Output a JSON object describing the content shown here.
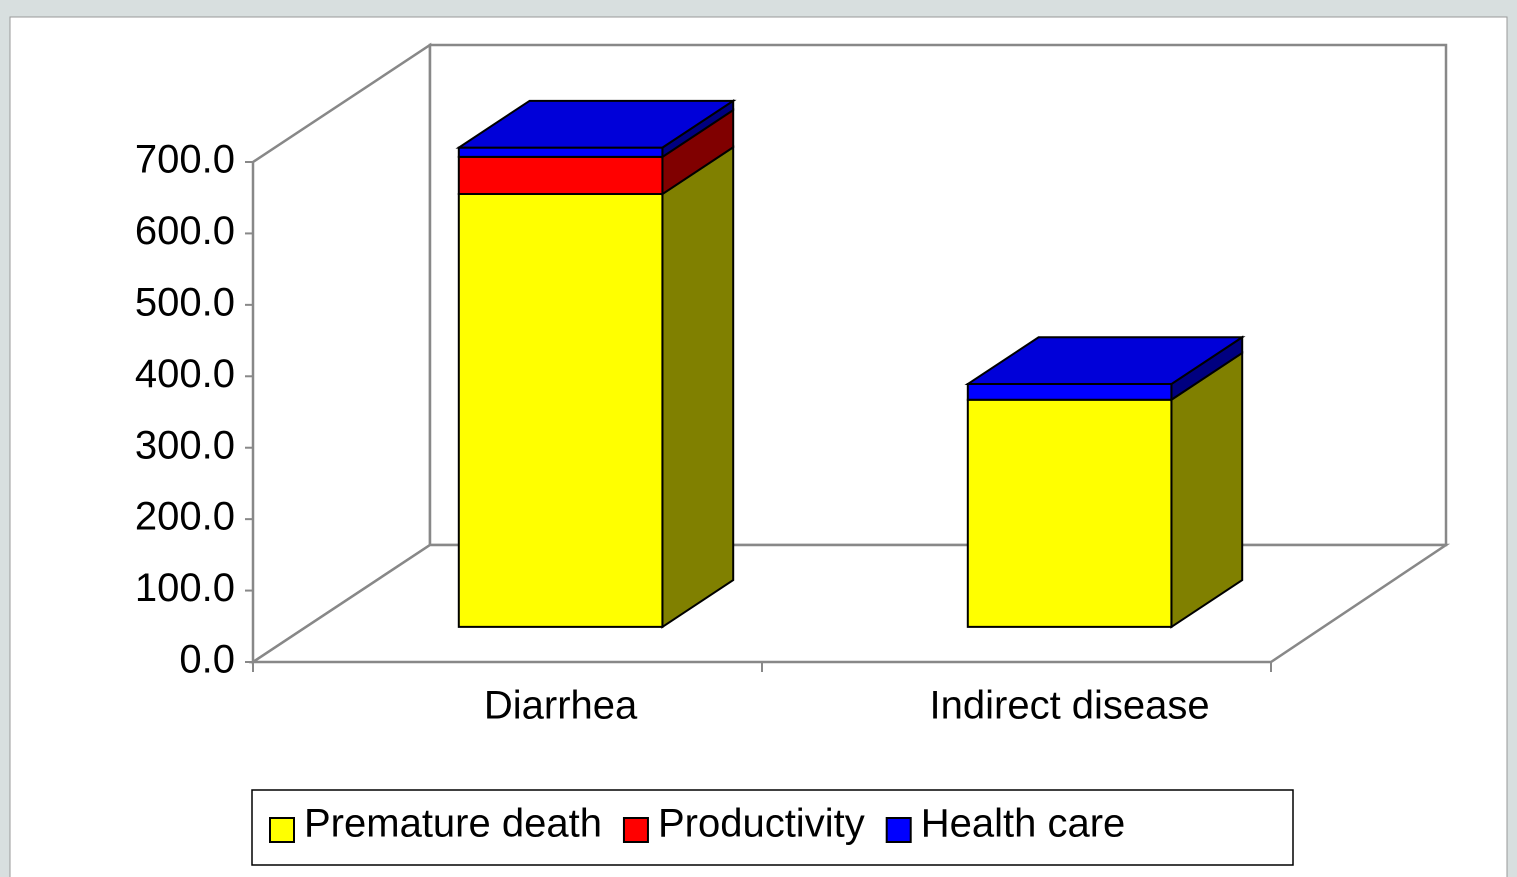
{
  "chart_data": {
    "type": "bar3d_stacked",
    "categories": [
      "Diarrhea",
      "Indirect disease"
    ],
    "series": [
      {
        "name": "Premature death",
        "color": "#ffff00",
        "values": [
          606,
          318
        ]
      },
      {
        "name": "Productivity",
        "color": "#ff0000",
        "values": [
          52,
          0
        ]
      },
      {
        "name": "Health care",
        "color": "#0000ff",
        "values": [
          13,
          22
        ]
      }
    ],
    "ylim": [
      0,
      700
    ],
    "yticks": [
      {
        "value": 0,
        "label": "0.0"
      },
      {
        "value": 100,
        "label": "100.0"
      },
      {
        "value": 200,
        "label": "200.0"
      },
      {
        "value": 300,
        "label": "300.0"
      },
      {
        "value": 400,
        "label": "400.0"
      },
      {
        "value": 500,
        "label": "500.0"
      },
      {
        "value": 600,
        "label": "600.0"
      },
      {
        "value": 700,
        "label": "700.0"
      }
    ],
    "legend": "bottom"
  }
}
